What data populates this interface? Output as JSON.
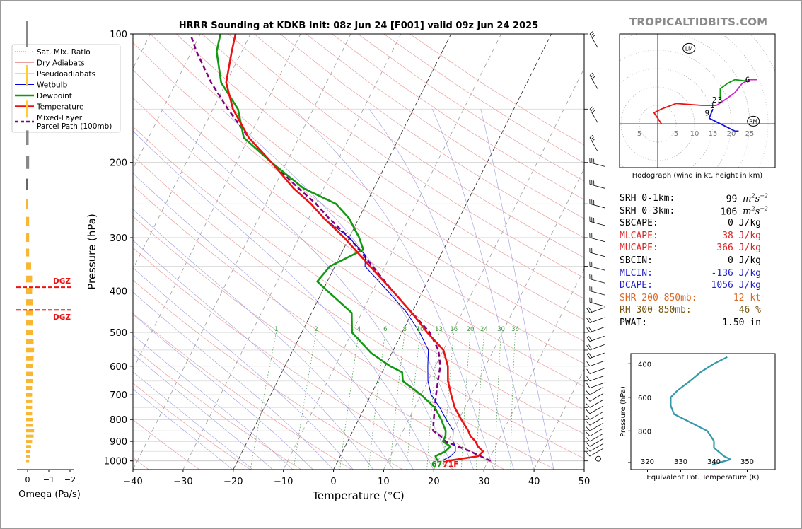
{
  "site": "TROPICALTIDBITS.COM",
  "chart_data": [
    {
      "type": "line",
      "name": "skew-t",
      "title": "HRRR Sounding at KDKB Init: 08z Jun 24 [F001] valid 09z Jun 24 2025",
      "xlabel": "Temperature (°C)",
      "ylabel": "Pressure (hPa)",
      "xlim": [
        -40,
        50
      ],
      "ylim": [
        1050,
        100
      ],
      "y_scale": "log",
      "x_ticks": [
        -40,
        -30,
        -20,
        -10,
        0,
        10,
        20,
        30,
        40,
        50
      ],
      "x_tick_labels": [
        "−40",
        "−30",
        "−20",
        "−10",
        "0",
        "10",
        "20",
        "30",
        "40",
        "50"
      ],
      "y_ticks": [
        100,
        200,
        300,
        400,
        500,
        600,
        700,
        800,
        900,
        1000
      ],
      "mixing_ratio_labels": [
        "1",
        "2",
        "4",
        "6",
        "8",
        "10",
        "13",
        "16",
        "20",
        "24",
        "30",
        "36"
      ],
      "surface_temp_label": "71F",
      "surface_dewpoint_label": "67",
      "legend": [
        {
          "label": "Sat. Mix. Ratio",
          "color": "#888888",
          "style": "dotted"
        },
        {
          "label": "Dry Adiabats",
          "color": "#e8a0a0",
          "style": "solid"
        },
        {
          "label": "Pseudoadiabats",
          "color": "#b0b0b0",
          "style": "solid"
        },
        {
          "label": "Wetbulb",
          "color": "#0000dd",
          "style": "solid"
        },
        {
          "label": "Dewpoint",
          "color": "#119911",
          "style": "solid"
        },
        {
          "label": "Temperature",
          "color": "#ee1111",
          "style": "solid"
        },
        {
          "label": "Mixed-Layer\nParcel Path (100mb)",
          "color": "#800080",
          "style": "dashed"
        }
      ],
      "legend_position": "top-left",
      "series": [
        {
          "name": "Temperature",
          "color": "#ee1111",
          "points": [
            [
              1000,
              21.5
            ],
            [
              995,
              23
            ],
            [
              975,
              27.5
            ],
            [
              950,
              28
            ],
            [
              925,
              26.5
            ],
            [
              900,
              25.5
            ],
            [
              875,
              24
            ],
            [
              850,
              23
            ],
            [
              800,
              20.5
            ],
            [
              750,
              18
            ],
            [
              700,
              16
            ],
            [
              650,
              14
            ],
            [
              600,
              12.5
            ],
            [
              550,
              10
            ],
            [
              500,
              5
            ],
            [
              450,
              0
            ],
            [
              400,
              -6
            ],
            [
              350,
              -13
            ],
            [
              300,
              -21
            ],
            [
              270,
              -27
            ],
            [
              250,
              -31
            ],
            [
              230,
              -36
            ],
            [
              200,
              -43
            ],
            [
              175,
              -50
            ],
            [
              150,
              -56
            ],
            [
              130,
              -60
            ],
            [
              110,
              -62
            ],
            [
              100,
              -63
            ]
          ]
        },
        {
          "name": "Dewpoint",
          "color": "#119911",
          "points": [
            [
              1000,
              20
            ],
            [
              990,
              19.5
            ],
            [
              975,
              19
            ],
            [
              950,
              20.5
            ],
            [
              925,
              21
            ],
            [
              900,
              19
            ],
            [
              875,
              19
            ],
            [
              850,
              18.5
            ],
            [
              800,
              16.5
            ],
            [
              750,
              14
            ],
            [
              700,
              10
            ],
            [
              650,
              5
            ],
            [
              620,
              4
            ],
            [
              600,
              1
            ],
            [
              560,
              -4
            ],
            [
              500,
              -10
            ],
            [
              450,
              -12
            ],
            [
              400,
              -19
            ],
            [
              380,
              -22
            ],
            [
              350,
              -21
            ],
            [
              320,
              -16
            ],
            [
              300,
              -18
            ],
            [
              270,
              -22
            ],
            [
              250,
              -26
            ],
            [
              230,
              -34
            ],
            [
              200,
              -43
            ],
            [
              175,
              -51
            ],
            [
              150,
              -55
            ],
            [
              130,
              -61
            ],
            [
              110,
              -65
            ],
            [
              100,
              -66
            ]
          ]
        },
        {
          "name": "Wetbulb",
          "color": "#0000dd",
          "points": [
            [
              995,
              21
            ],
            [
              975,
              22
            ],
            [
              950,
              22.5
            ],
            [
              925,
              22
            ],
            [
              900,
              21
            ],
            [
              875,
              20.5
            ],
            [
              850,
              20
            ],
            [
              800,
              17.5
            ],
            [
              750,
              15
            ],
            [
              700,
              12
            ],
            [
              650,
              10
            ],
            [
              600,
              8.5
            ],
            [
              550,
              7
            ],
            [
              500,
              3.5
            ],
            [
              450,
              -1
            ],
            [
              400,
              -7
            ],
            [
              350,
              -14
            ],
            [
              330,
              -15
            ],
            [
              300,
              -20
            ],
            [
              270,
              -27
            ],
            [
              250,
              -31
            ],
            [
              230,
              -36
            ],
            [
              200,
              -43
            ]
          ]
        },
        {
          "name": "Mixed-Layer Parcel Path (100mb)",
          "color": "#800080",
          "style": "dashed",
          "points": [
            [
              1000,
              30.5
            ],
            [
              975,
              28
            ],
            [
              950,
              25.5
            ],
            [
              925,
              22.5
            ],
            [
              900,
              19.5
            ],
            [
              875,
              18
            ],
            [
              850,
              16
            ],
            [
              800,
              15
            ],
            [
              750,
              14
            ],
            [
              700,
              13
            ],
            [
              650,
              12
            ],
            [
              600,
              11
            ],
            [
              550,
              9
            ],
            [
              500,
              5.5
            ],
            [
              450,
              0
            ],
            [
              400,
              -6
            ],
            [
              350,
              -12.5
            ],
            [
              300,
              -20
            ],
            [
              270,
              -26
            ],
            [
              250,
              -30
            ],
            [
              230,
              -35
            ],
            [
              200,
              -43
            ],
            [
              175,
              -50
            ],
            [
              150,
              -57
            ],
            [
              130,
              -63
            ],
            [
              110,
              -69
            ],
            [
              100,
              -72
            ]
          ]
        }
      ]
    },
    {
      "type": "bar",
      "name": "omega",
      "xlabel": "Omega (Pa/s)",
      "x_ticks": [
        0,
        -1,
        -2
      ],
      "x_tick_labels": [
        "0",
        "−1",
        "−2"
      ],
      "dgz_label": "DGZ",
      "dgz_pressures": [
        392,
        443
      ],
      "bars": [
        {
          "p": 1000,
          "v": 0.6
        },
        {
          "p": 975,
          "v": 0.8
        },
        {
          "p": 950,
          "v": 0.8
        },
        {
          "p": 925,
          "v": 1.0
        },
        {
          "p": 900,
          "v": 1.2
        },
        {
          "p": 875,
          "v": 1.5
        },
        {
          "p": 850,
          "v": 1.6
        },
        {
          "p": 825,
          "v": 1.4
        },
        {
          "p": 800,
          "v": 1.3
        },
        {
          "p": 775,
          "v": 1.2
        },
        {
          "p": 750,
          "v": 1.2
        },
        {
          "p": 725,
          "v": 1.2
        },
        {
          "p": 700,
          "v": 1.2
        },
        {
          "p": 675,
          "v": 1.2
        },
        {
          "p": 650,
          "v": 1.3
        },
        {
          "p": 625,
          "v": 1.4
        },
        {
          "p": 600,
          "v": 1.4
        },
        {
          "p": 575,
          "v": 1.5
        },
        {
          "p": 550,
          "v": 1.6
        },
        {
          "p": 525,
          "v": 1.5
        },
        {
          "p": 500,
          "v": 1.4
        },
        {
          "p": 475,
          "v": 1.4
        },
        {
          "p": 450,
          "v": 1.3
        },
        {
          "p": 425,
          "v": 1.3
        },
        {
          "p": 400,
          "v": 1.2
        },
        {
          "p": 375,
          "v": 1.2
        },
        {
          "p": 350,
          "v": 1.0
        },
        {
          "p": 325,
          "v": 0.6
        },
        {
          "p": 300,
          "v": 0.6
        },
        {
          "p": 275,
          "v": 0.6
        },
        {
          "p": 250,
          "v": 0.4
        },
        {
          "p": 225,
          "v": 0.2,
          "color": "#666666"
        },
        {
          "p": 200,
          "v": 0.6,
          "color": "#888888"
        },
        {
          "p": 175,
          "v": 0.5,
          "color": "#888888"
        },
        {
          "p": 150,
          "v": 0.2,
          "color": "#ffcc33"
        },
        {
          "p": 125,
          "v": 0.1,
          "color": "#ffcc33"
        },
        {
          "p": 100,
          "v": 0.1,
          "color": "#888888"
        }
      ]
    },
    {
      "type": "line",
      "name": "hodograph",
      "caption": "Hodograph (wind in kt, height in km)",
      "ring_labels": [
        "5",
        "5",
        "10",
        "15",
        "20",
        "25"
      ],
      "storm_motion_labels": [
        "LM",
        "RM"
      ],
      "height_labels": [
        {
          "label": "1",
          "u": 15.5,
          "v": 5
        },
        {
          "label": "2",
          "u": 16,
          "v": 6.5
        },
        {
          "label": "3",
          "u": 17.5,
          "v": 6.5
        },
        {
          "label": "6",
          "u": 25,
          "v": 12
        },
        {
          "label": "9",
          "u": 14,
          "v": 3
        }
      ],
      "segments": [
        {
          "color": "#ee1111",
          "points": [
            [
              1,
              0
            ],
            [
              -1,
              3
            ],
            [
              1,
              4
            ],
            [
              5,
              5.5
            ],
            [
              12,
              5
            ],
            [
              16,
              5
            ]
          ]
        },
        {
          "color": "#cc22cc",
          "points": [
            [
              16,
              5
            ],
            [
              19,
              7
            ],
            [
              21,
              8.5
            ],
            [
              23,
              11
            ],
            [
              25,
              12
            ],
            [
              27,
              12
            ]
          ]
        },
        {
          "color": "#119911",
          "points": [
            [
              17,
              6.5
            ],
            [
              17,
              9.5
            ],
            [
              19,
              11
            ],
            [
              21,
              12
            ],
            [
              25,
              11.5
            ]
          ]
        },
        {
          "color": "#1111dd",
          "points": [
            [
              15,
              4
            ],
            [
              14,
              1.5
            ],
            [
              16,
              0.5
            ],
            [
              19,
              -1
            ],
            [
              21,
              -2
            ],
            [
              22,
              -2
            ]
          ]
        }
      ]
    },
    {
      "type": "line",
      "name": "theta-e",
      "xlabel": "Equivalent Pot. Temperature (K)",
      "ylabel": "Pressure (hPa)",
      "x_ticks": [
        320,
        330,
        340,
        350
      ],
      "y_ticks": [
        400,
        600,
        800
      ],
      "bottom_label": "320",
      "series": [
        {
          "name": "Theta-E",
          "color": "#3399aa",
          "points": [
            [
              1000,
              339.5
            ],
            [
              970,
              345
            ],
            [
              950,
              343
            ],
            [
              900,
              340
            ],
            [
              860,
              340
            ],
            [
              800,
              338
            ],
            [
              750,
              333
            ],
            [
              700,
              328
            ],
            [
              650,
              327
            ],
            [
              600,
              327
            ],
            [
              560,
              329
            ],
            [
              500,
              333
            ],
            [
              450,
              336
            ],
            [
              400,
              340
            ],
            [
              360,
              344
            ]
          ]
        }
      ]
    }
  ],
  "indices": [
    {
      "label": "SRH 0-1km:",
      "value": "99",
      "unit": "m2s-2",
      "color": "#000000"
    },
    {
      "label": "SRH 0-3km:",
      "value": "106",
      "unit": "m2s-2",
      "color": "#000000"
    },
    {
      "label": "SBCAPE:",
      "value": "0 J/kg",
      "color": "#000000"
    },
    {
      "label": "MLCAPE:",
      "value": "38 J/kg",
      "color": "#dd2222"
    },
    {
      "label": "MUCAPE:",
      "value": "366 J/kg",
      "color": "#dd2222"
    },
    {
      "label": "SBCIN:",
      "value": "0 J/kg",
      "color": "#000000"
    },
    {
      "label": "MLCIN:",
      "value": "-136 J/kg",
      "color": "#2222cc"
    },
    {
      "label": "DCAPE:",
      "value": "1056 J/kg",
      "color": "#2222cc"
    },
    {
      "label": "SHR 200-850mb:",
      "value": "12 kt",
      "color": "#dd6622"
    },
    {
      "label": "RH 300-850mb:",
      "value": "46 %",
      "color": "#775511"
    },
    {
      "label": "PWAT:",
      "value": "1.50 in",
      "color": "#000000"
    }
  ]
}
